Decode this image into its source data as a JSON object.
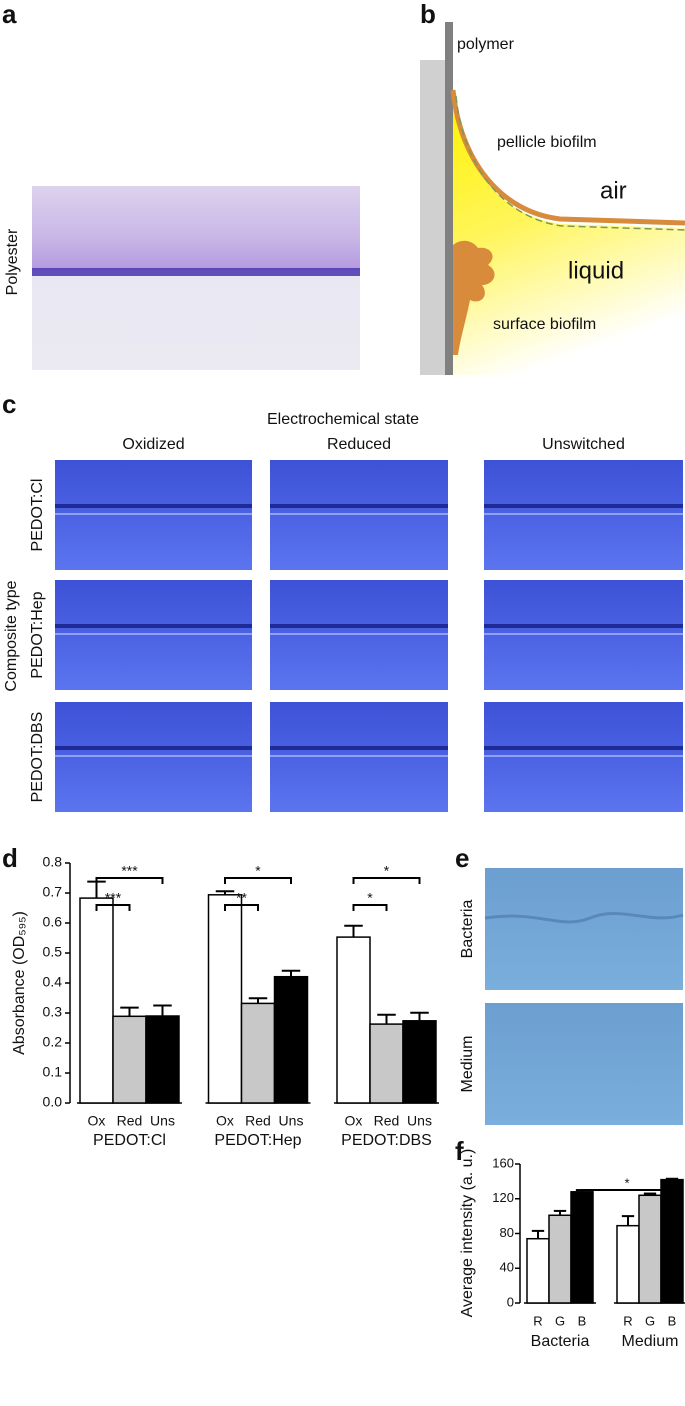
{
  "panels": {
    "a": {
      "letter": "a",
      "label": "Polyester"
    },
    "b": {
      "letter": "b",
      "polymer": "polymer",
      "pellicle": "pellicle biofilm",
      "air": "air",
      "liquid": "liquid",
      "surface": "surface biofilm"
    },
    "c": {
      "letter": "c",
      "title": "Electrochemical state",
      "columns": [
        "Oxidized",
        "Reduced",
        "Unswitched"
      ],
      "row_title": "Composite type",
      "rows": [
        "PEDOT:Cl",
        "PEDOT:Hep",
        "PEDOT:DBS"
      ]
    },
    "e": {
      "letter": "e",
      "rows": [
        "Bacteria",
        "Medium"
      ]
    }
  },
  "chart_data": [
    {
      "type": "bar",
      "panel_label": "d",
      "y_label": "Absorbance (OD₅₉₅)",
      "categories": [
        "PEDOT:Cl",
        "PEDOT:Hep",
        "PEDOT:DBS"
      ],
      "series": [
        {
          "name": "Ox",
          "color": "#ffffff",
          "values": [
            0.683,
            0.694,
            0.553
          ],
          "errors": [
            0.055,
            0.012,
            0.038
          ]
        },
        {
          "name": "Red",
          "color": "#c8c8c8",
          "values": [
            0.289,
            0.332,
            0.263
          ],
          "errors": [
            0.029,
            0.017,
            0.031
          ]
        },
        {
          "name": "Uns",
          "color": "#000000",
          "values": [
            0.29,
            0.421,
            0.274
          ],
          "errors": [
            0.035,
            0.02,
            0.027
          ]
        }
      ],
      "ylim": [
        0,
        0.8
      ],
      "yticks": [
        {
          "value": 0,
          "label": "0.0"
        },
        0.1,
        0.2,
        0.3,
        0.4,
        0.5,
        0.6,
        0.7,
        0.8
      ],
      "significance": [
        {
          "from": [
            "PEDOT:Cl",
            "Ox"
          ],
          "to": [
            "PEDOT:Cl",
            "Red"
          ],
          "label": "***"
        },
        {
          "from": [
            "PEDOT:Cl",
            "Ox"
          ],
          "to": [
            "PEDOT:Cl",
            "Uns"
          ],
          "label": "***"
        },
        {
          "from": [
            "PEDOT:Hep",
            "Ox"
          ],
          "to": [
            "PEDOT:Hep",
            "Red"
          ],
          "label": "**"
        },
        {
          "from": [
            "PEDOT:Hep",
            "Ox"
          ],
          "to": [
            "PEDOT:Hep",
            "Uns"
          ],
          "label": "*"
        },
        {
          "from": [
            "PEDOT:DBS",
            "Ox"
          ],
          "to": [
            "PEDOT:DBS",
            "Red"
          ],
          "label": "*"
        },
        {
          "from": [
            "PEDOT:DBS",
            "Ox"
          ],
          "to": [
            "PEDOT:DBS",
            "Uns"
          ],
          "label": "*"
        }
      ]
    },
    {
      "type": "bar",
      "panel_label": "f",
      "y_label": "Average intensity (a. u.)",
      "categories": [
        "Bacteria",
        "Medium"
      ],
      "series": [
        {
          "name": "R",
          "color": "#ffffff",
          "values": [
            74,
            89
          ],
          "errors": [
            9,
            11
          ]
        },
        {
          "name": "G",
          "color": "#c8c8c8",
          "values": [
            101,
            124
          ],
          "errors": [
            5,
            2
          ]
        },
        {
          "name": "B",
          "color": "#000000",
          "values": [
            128,
            142
          ],
          "errors": [
            2,
            1
          ]
        }
      ],
      "ylim": [
        0,
        160
      ],
      "yticks": [
        0,
        40,
        80,
        120,
        160
      ],
      "significance": [
        {
          "from": [
            "Bacteria",
            "B"
          ],
          "to": [
            "Medium",
            "B"
          ],
          "label": "*"
        }
      ]
    }
  ]
}
